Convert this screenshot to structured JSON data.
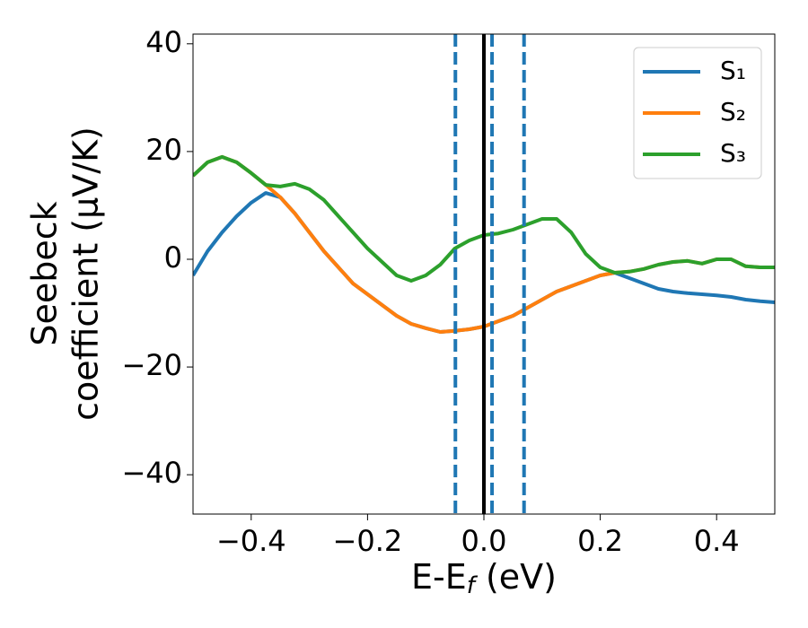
{
  "chart_data": {
    "type": "line",
    "xlabel": [
      "E-E",
      "f",
      " (eV)"
    ],
    "ylabel": [
      "Seebeck",
      "coefficient  (μV/K)"
    ],
    "x": [
      -0.5,
      -0.475,
      -0.45,
      -0.425,
      -0.4,
      -0.375,
      -0.35,
      -0.325,
      -0.3,
      -0.275,
      -0.25,
      -0.225,
      -0.2,
      -0.175,
      -0.15,
      -0.125,
      -0.1,
      -0.075,
      -0.05,
      -0.025,
      0,
      0.025,
      0.05,
      0.075,
      0.1,
      0.125,
      0.15,
      0.175,
      0.2,
      0.225,
      0.25,
      0.275,
      0.3,
      0.325,
      0.35,
      0.375,
      0.4,
      0.425,
      0.45,
      0.475,
      0.5
    ],
    "series": [
      {
        "name": "S₁",
        "color": "#1f77b4",
        "values": [
          -3,
          1.5,
          5,
          8,
          10.5,
          12.3,
          11.5,
          8.5,
          5,
          1.5,
          -1.5,
          -4.5,
          -6.5,
          -8.5,
          -10.5,
          -12,
          -12.8,
          -13.5,
          -13.3,
          -13,
          -12.5,
          -11.5,
          -10.5,
          -9,
          -7.5,
          -6,
          -5,
          -4,
          -3,
          -2.5,
          -3.5,
          -4.5,
          -5.5,
          -6,
          -6.3,
          -6.5,
          -6.7,
          -7,
          -7.5,
          -7.8,
          -8
        ]
      },
      {
        "name": "S₂",
        "color": "#ff7f0e",
        "values": [
          15.5,
          18,
          19,
          18,
          16,
          13.8,
          11.5,
          8.5,
          5,
          1.5,
          -1.5,
          -4.5,
          -6.5,
          -8.5,
          -10.5,
          -12,
          -12.8,
          -13.5,
          -13.3,
          -13,
          -12.5,
          -11.5,
          -10.5,
          -9,
          -7.5,
          -6,
          -5,
          -4,
          -3,
          -2.5,
          -2.3,
          -1.8,
          -1,
          -0.5,
          -0.3,
          -0.8,
          0,
          0,
          -1.3,
          -1.5,
          -1.5
        ]
      },
      {
        "name": "S₃",
        "color": "#2ca02c",
        "values": [
          15.5,
          18,
          19,
          18,
          16,
          13.8,
          13.5,
          14,
          13,
          11,
          8,
          5,
          2,
          -0.5,
          -3,
          -4,
          -3,
          -1,
          2,
          3.5,
          4.5,
          4.8,
          5.5,
          6.5,
          7.5,
          7.5,
          5,
          1,
          -1.5,
          -2.5,
          -2.3,
          -1.8,
          -1,
          -0.5,
          -0.3,
          -0.8,
          0,
          0,
          -1.3,
          -1.5,
          -1.5
        ]
      }
    ],
    "vlines": [
      {
        "x": -0.049,
        "color": "#1f77b4",
        "style": "dashed"
      },
      {
        "x": 0,
        "color": "#000000",
        "style": "solid"
      },
      {
        "x": 0.014,
        "color": "#1f77b4",
        "style": "dashed"
      },
      {
        "x": 0.069,
        "color": "#1f77b4",
        "style": "dashed"
      }
    ],
    "xlim": [
      -0.5,
      0.5
    ],
    "xticks": [
      {
        "value": -0.4,
        "label": "−0.4"
      },
      {
        "value": -0.2,
        "label": "−0.2"
      },
      {
        "value": 0,
        "label": "0.0"
      },
      0.2,
      0.4
    ],
    "ylim": [
      -47.3,
      41.8
    ],
    "yticks": [
      {
        "value": -40,
        "label": "−40"
      },
      {
        "value": -20,
        "label": "−20"
      },
      0,
      20,
      40
    ],
    "legend": "upper right"
  }
}
